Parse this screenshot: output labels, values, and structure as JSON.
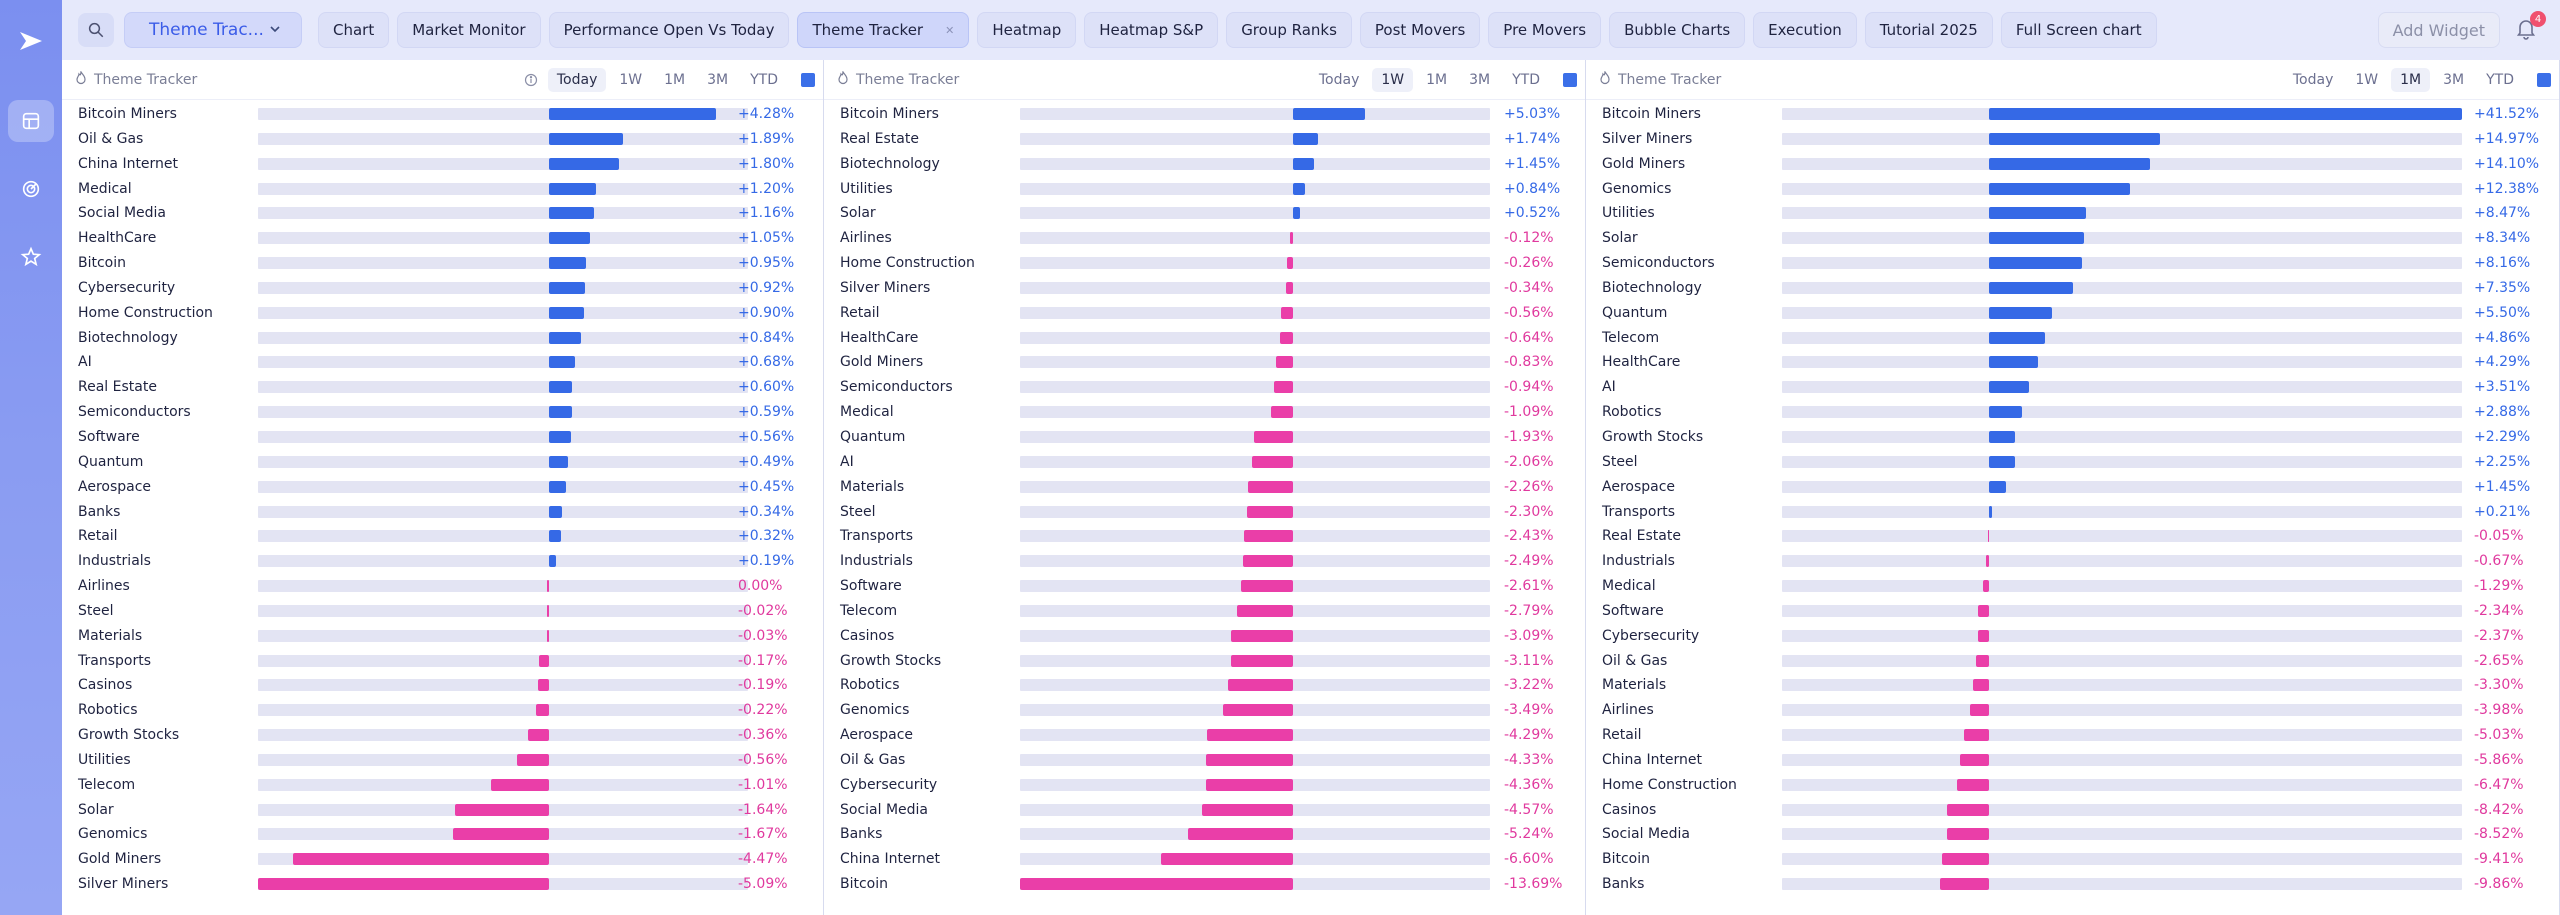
{
  "colors": {
    "positive": "#3569e6",
    "negative": "#ea3ea8",
    "track": "#e3e4f3",
    "accent": "#3b5ce8"
  },
  "sidebar": {
    "icons": [
      "logo-play-icon",
      "layout-icon",
      "radar-icon",
      "star-icon"
    ]
  },
  "topbar": {
    "widget_select": "Theme Trac...",
    "tabs": [
      {
        "label": "Chart"
      },
      {
        "label": "Market Monitor"
      },
      {
        "label": "Performance Open Vs Today"
      },
      {
        "label": "Theme Tracker"
      },
      {
        "label": "Heatmap"
      },
      {
        "label": "Heatmap S&P"
      },
      {
        "label": "Group Ranks"
      },
      {
        "label": "Post Movers"
      },
      {
        "label": "Pre Movers"
      },
      {
        "label": "Bubble Charts"
      },
      {
        "label": "Execution"
      },
      {
        "label": "Tutorial 2025"
      },
      {
        "label": "Full Screen chart"
      }
    ],
    "add_widget": "Add Widget",
    "notification_count": "4"
  },
  "timeframes": [
    "Today",
    "1W",
    "1M",
    "3M",
    "YTD"
  ],
  "panels": [
    {
      "title": "Theme Tracker",
      "active_timeframe": "Today",
      "scale": 5.09,
      "rows": [
        {
          "name": "Bitcoin Miners",
          "value": 4.28,
          "label": "+4.28%"
        },
        {
          "name": "Oil & Gas",
          "value": 1.89,
          "label": "+1.89%"
        },
        {
          "name": "China Internet",
          "value": 1.8,
          "label": "+1.80%"
        },
        {
          "name": "Medical",
          "value": 1.2,
          "label": "+1.20%"
        },
        {
          "name": "Social Media",
          "value": 1.16,
          "label": "+1.16%"
        },
        {
          "name": "HealthCare",
          "value": 1.05,
          "label": "+1.05%"
        },
        {
          "name": "Bitcoin",
          "value": 0.95,
          "label": "+0.95%"
        },
        {
          "name": "Cybersecurity",
          "value": 0.92,
          "label": "+0.92%"
        },
        {
          "name": "Home Construction",
          "value": 0.9,
          "label": "+0.90%"
        },
        {
          "name": "Biotechnology",
          "value": 0.84,
          "label": "+0.84%"
        },
        {
          "name": "AI",
          "value": 0.68,
          "label": "+0.68%"
        },
        {
          "name": "Real Estate",
          "value": 0.6,
          "label": "+0.60%"
        },
        {
          "name": "Semiconductors",
          "value": 0.59,
          "label": "+0.59%"
        },
        {
          "name": "Software",
          "value": 0.56,
          "label": "+0.56%"
        },
        {
          "name": "Quantum",
          "value": 0.49,
          "label": "+0.49%"
        },
        {
          "name": "Aerospace",
          "value": 0.45,
          "label": "+0.45%"
        },
        {
          "name": "Banks",
          "value": 0.34,
          "label": "+0.34%"
        },
        {
          "name": "Retail",
          "value": 0.32,
          "label": "+0.32%"
        },
        {
          "name": "Industrials",
          "value": 0.19,
          "label": "+0.19%"
        },
        {
          "name": "Airlines",
          "value": 0.0,
          "label": "0.00%"
        },
        {
          "name": "Steel",
          "value": -0.02,
          "label": "-0.02%"
        },
        {
          "name": "Materials",
          "value": -0.03,
          "label": "-0.03%"
        },
        {
          "name": "Transports",
          "value": -0.17,
          "label": "-0.17%"
        },
        {
          "name": "Casinos",
          "value": -0.19,
          "label": "-0.19%"
        },
        {
          "name": "Robotics",
          "value": -0.22,
          "label": "-0.22%"
        },
        {
          "name": "Growth Stocks",
          "value": -0.36,
          "label": "-0.36%"
        },
        {
          "name": "Utilities",
          "value": -0.56,
          "label": "-0.56%"
        },
        {
          "name": "Telecom",
          "value": -1.01,
          "label": "-1.01%"
        },
        {
          "name": "Solar",
          "value": -1.64,
          "label": "-1.64%"
        },
        {
          "name": "Genomics",
          "value": -1.67,
          "label": "-1.67%"
        },
        {
          "name": "Gold Miners",
          "value": -4.47,
          "label": "-4.47%"
        },
        {
          "name": "Silver Miners",
          "value": -5.09,
          "label": "-5.09%"
        }
      ]
    },
    {
      "title": "Theme Tracker",
      "active_timeframe": "1W",
      "scale": 13.69,
      "rows": [
        {
          "name": "Bitcoin Miners",
          "value": 5.03,
          "label": "+5.03%"
        },
        {
          "name": "Real Estate",
          "value": 1.74,
          "label": "+1.74%"
        },
        {
          "name": "Biotechnology",
          "value": 1.45,
          "label": "+1.45%"
        },
        {
          "name": "Utilities",
          "value": 0.84,
          "label": "+0.84%"
        },
        {
          "name": "Solar",
          "value": 0.52,
          "label": "+0.52%"
        },
        {
          "name": "Airlines",
          "value": -0.12,
          "label": "-0.12%"
        },
        {
          "name": "Home Construction",
          "value": -0.26,
          "label": "-0.26%"
        },
        {
          "name": "Silver Miners",
          "value": -0.34,
          "label": "-0.34%"
        },
        {
          "name": "Retail",
          "value": -0.56,
          "label": "-0.56%"
        },
        {
          "name": "HealthCare",
          "value": -0.64,
          "label": "-0.64%"
        },
        {
          "name": "Gold Miners",
          "value": -0.83,
          "label": "-0.83%"
        },
        {
          "name": "Semiconductors",
          "value": -0.94,
          "label": "-0.94%"
        },
        {
          "name": "Medical",
          "value": -1.09,
          "label": "-1.09%"
        },
        {
          "name": "Quantum",
          "value": -1.93,
          "label": "-1.93%"
        },
        {
          "name": "AI",
          "value": -2.06,
          "label": "-2.06%"
        },
        {
          "name": "Materials",
          "value": -2.26,
          "label": "-2.26%"
        },
        {
          "name": "Steel",
          "value": -2.3,
          "label": "-2.30%"
        },
        {
          "name": "Transports",
          "value": -2.43,
          "label": "-2.43%"
        },
        {
          "name": "Industrials",
          "value": -2.49,
          "label": "-2.49%"
        },
        {
          "name": "Software",
          "value": -2.61,
          "label": "-2.61%"
        },
        {
          "name": "Telecom",
          "value": -2.79,
          "label": "-2.79%"
        },
        {
          "name": "Casinos",
          "value": -3.09,
          "label": "-3.09%"
        },
        {
          "name": "Growth Stocks",
          "value": -3.11,
          "label": "-3.11%"
        },
        {
          "name": "Robotics",
          "value": -3.22,
          "label": "-3.22%"
        },
        {
          "name": "Genomics",
          "value": -3.49,
          "label": "-3.49%"
        },
        {
          "name": "Aerospace",
          "value": -4.29,
          "label": "-4.29%"
        },
        {
          "name": "Oil & Gas",
          "value": -4.33,
          "label": "-4.33%"
        },
        {
          "name": "Cybersecurity",
          "value": -4.36,
          "label": "-4.36%"
        },
        {
          "name": "Social Media",
          "value": -4.57,
          "label": "-4.57%"
        },
        {
          "name": "Banks",
          "value": -5.24,
          "label": "-5.24%"
        },
        {
          "name": "China Internet",
          "value": -6.6,
          "label": "-6.60%"
        },
        {
          "name": "Bitcoin",
          "value": -13.69,
          "label": "-13.69%"
        }
      ]
    },
    {
      "title": "Theme Tracker",
      "active_timeframe": "1M",
      "scale": 41.52,
      "rows": [
        {
          "name": "Bitcoin Miners",
          "value": 41.52,
          "label": "+41.52%"
        },
        {
          "name": "Silver Miners",
          "value": 14.97,
          "label": "+14.97%"
        },
        {
          "name": "Gold Miners",
          "value": 14.1,
          "label": "+14.10%"
        },
        {
          "name": "Genomics",
          "value": 12.38,
          "label": "+12.38%"
        },
        {
          "name": "Utilities",
          "value": 8.47,
          "label": "+8.47%"
        },
        {
          "name": "Solar",
          "value": 8.34,
          "label": "+8.34%"
        },
        {
          "name": "Semiconductors",
          "value": 8.16,
          "label": "+8.16%"
        },
        {
          "name": "Biotechnology",
          "value": 7.35,
          "label": "+7.35%"
        },
        {
          "name": "Quantum",
          "value": 5.5,
          "label": "+5.50%"
        },
        {
          "name": "Telecom",
          "value": 4.86,
          "label": "+4.86%"
        },
        {
          "name": "HealthCare",
          "value": 4.29,
          "label": "+4.29%"
        },
        {
          "name": "AI",
          "value": 3.51,
          "label": "+3.51%"
        },
        {
          "name": "Robotics",
          "value": 2.88,
          "label": "+2.88%"
        },
        {
          "name": "Growth Stocks",
          "value": 2.29,
          "label": "+2.29%"
        },
        {
          "name": "Steel",
          "value": 2.25,
          "label": "+2.25%"
        },
        {
          "name": "Aerospace",
          "value": 1.45,
          "label": "+1.45%"
        },
        {
          "name": "Transports",
          "value": 0.21,
          "label": "+0.21%"
        },
        {
          "name": "Real Estate",
          "value": -0.05,
          "label": "-0.05%"
        },
        {
          "name": "Industrials",
          "value": -0.67,
          "label": "-0.67%"
        },
        {
          "name": "Medical",
          "value": -1.29,
          "label": "-1.29%"
        },
        {
          "name": "Software",
          "value": -2.34,
          "label": "-2.34%"
        },
        {
          "name": "Cybersecurity",
          "value": -2.37,
          "label": "-2.37%"
        },
        {
          "name": "Oil & Gas",
          "value": -2.65,
          "label": "-2.65%"
        },
        {
          "name": "Materials",
          "value": -3.3,
          "label": "-3.30%"
        },
        {
          "name": "Airlines",
          "value": -3.98,
          "label": "-3.98%"
        },
        {
          "name": "Retail",
          "value": -5.03,
          "label": "-5.03%"
        },
        {
          "name": "China Internet",
          "value": -5.86,
          "label": "-5.86%"
        },
        {
          "name": "Home Construction",
          "value": -6.47,
          "label": "-6.47%"
        },
        {
          "name": "Casinos",
          "value": -8.42,
          "label": "-8.42%"
        },
        {
          "name": "Social Media",
          "value": -8.52,
          "label": "-8.52%"
        },
        {
          "name": "Bitcoin",
          "value": -9.41,
          "label": "-9.41%"
        },
        {
          "name": "Banks",
          "value": -9.86,
          "label": "-9.86%"
        }
      ]
    }
  ]
}
